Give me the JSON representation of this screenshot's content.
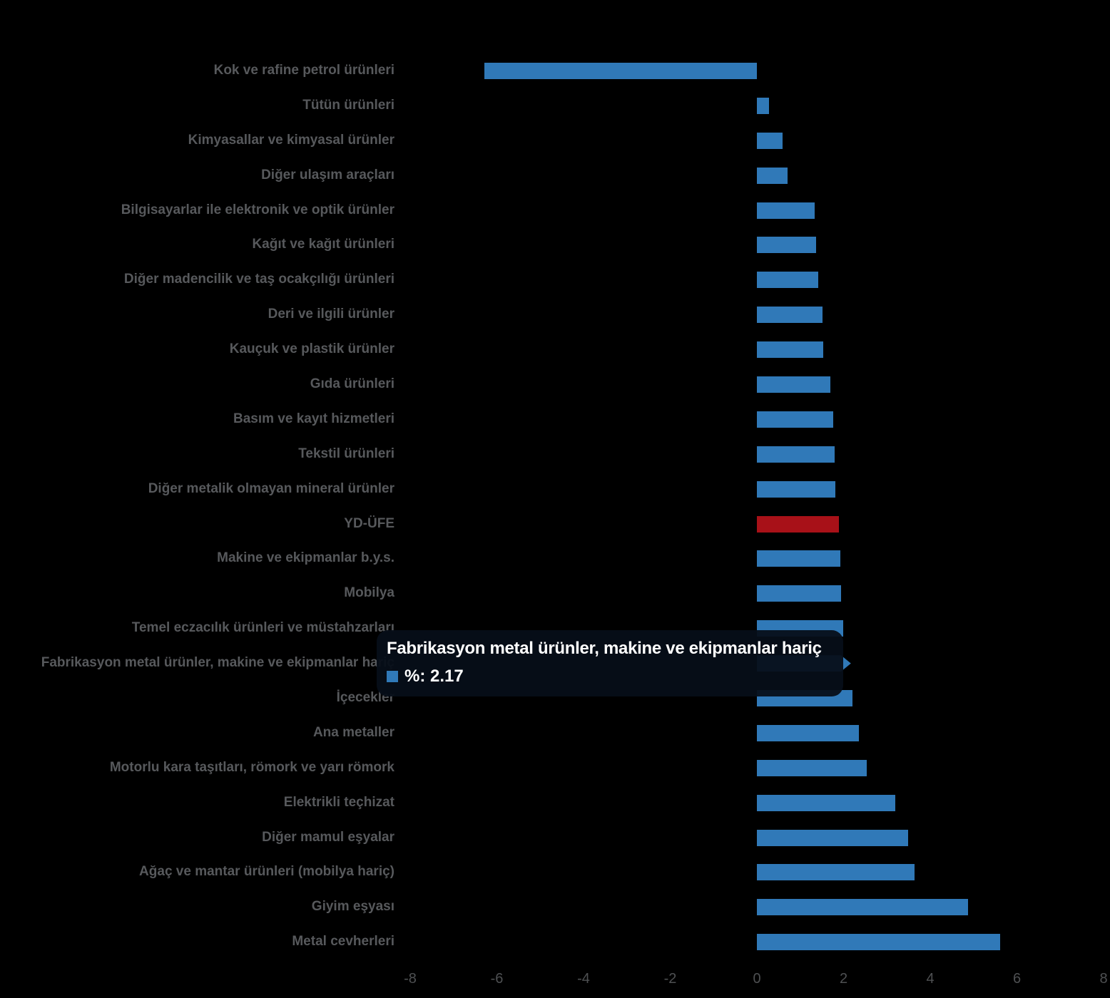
{
  "chart_data": {
    "type": "bar",
    "orientation": "horizontal",
    "title": "",
    "xlabel": "",
    "ylabel": "",
    "xlim": [
      -8,
      8
    ],
    "x_ticks": [
      -8,
      -6,
      -4,
      -2,
      0,
      2,
      4,
      6,
      8
    ],
    "x_tick_labels": [
      "-8",
      "-6",
      "-4",
      "-2",
      "0",
      "2",
      "4",
      "6",
      "8"
    ],
    "grid": false,
    "legend": false,
    "bar_color": "#3079b8",
    "highlight_color": "#a81118",
    "series_name": "%",
    "items": [
      {
        "label": "Kok ve rafine petrol ürünleri",
        "value": -6.29,
        "emphasis": "normal",
        "state": "normal"
      },
      {
        "label": "Tütün ürünleri",
        "value": 0.28,
        "emphasis": "normal",
        "state": "normal"
      },
      {
        "label": "Kimyasallar ve kimyasal ürünler",
        "value": 0.6,
        "emphasis": "normal",
        "state": "normal"
      },
      {
        "label": "Diğer ulaşım araçları",
        "value": 0.7,
        "emphasis": "normal",
        "state": "normal"
      },
      {
        "label": "Bilgisayarlar ile elektronik ve optik ürünler",
        "value": 1.33,
        "emphasis": "normal",
        "state": "normal"
      },
      {
        "label": "Kağıt ve kağıt ürünleri",
        "value": 1.37,
        "emphasis": "normal",
        "state": "normal"
      },
      {
        "label": "Diğer madencilik ve taş ocakçılığı ürünleri",
        "value": 1.42,
        "emphasis": "normal",
        "state": "normal"
      },
      {
        "label": "Deri ve ilgili ürünler",
        "value": 1.52,
        "emphasis": "normal",
        "state": "normal"
      },
      {
        "label": "Kauçuk ve plastik ürünler",
        "value": 1.53,
        "emphasis": "normal",
        "state": "normal"
      },
      {
        "label": "Gıda ürünleri",
        "value": 1.69,
        "emphasis": "normal",
        "state": "normal"
      },
      {
        "label": "Basım ve kayıt hizmetleri",
        "value": 1.76,
        "emphasis": "normal",
        "state": "normal"
      },
      {
        "label": "Tekstil ürünleri",
        "value": 1.8,
        "emphasis": "normal",
        "state": "normal"
      },
      {
        "label": "Diğer metalik olmayan mineral ürünler",
        "value": 1.81,
        "emphasis": "normal",
        "state": "normal"
      },
      {
        "label": "YD-ÜFE",
        "value": 1.89,
        "emphasis": "highlight",
        "state": "normal"
      },
      {
        "label": "Makine ve ekipmanlar b.y.s.",
        "value": 1.92,
        "emphasis": "normal",
        "state": "normal"
      },
      {
        "label": "Mobilya",
        "value": 1.94,
        "emphasis": "normal",
        "state": "normal"
      },
      {
        "label": "Temel eczacılık ürünleri ve müstahzarları",
        "value": 1.99,
        "emphasis": "normal",
        "state": "normal"
      },
      {
        "label": "Fabrikasyon metal ürünler, makine ve ekipmanlar hariç",
        "value": 2.17,
        "emphasis": "normal",
        "state": "hovered"
      },
      {
        "label": "İçecekler",
        "value": 2.21,
        "emphasis": "normal",
        "state": "normal"
      },
      {
        "label": "Ana metaller",
        "value": 2.36,
        "emphasis": "normal",
        "state": "normal"
      },
      {
        "label": "Motorlu kara taşıtları, römork ve yarı römork",
        "value": 2.53,
        "emphasis": "normal",
        "state": "normal"
      },
      {
        "label": "Elektrikli teçhizat",
        "value": 3.2,
        "emphasis": "normal",
        "state": "normal"
      },
      {
        "label": "Diğer mamul eşyalar",
        "value": 3.49,
        "emphasis": "normal",
        "state": "normal"
      },
      {
        "label": "Ağaç ve mantar ürünleri (mobilya hariç)",
        "value": 3.63,
        "emphasis": "normal",
        "state": "normal"
      },
      {
        "label": "Giyim eşyası",
        "value": 4.87,
        "emphasis": "normal",
        "state": "normal"
      },
      {
        "label": "Metal cevherleri",
        "value": 5.61,
        "emphasis": "normal",
        "state": "normal"
      }
    ]
  },
  "tooltip": {
    "title": "Fabrikasyon metal ürünler, makine ve ekipmanlar hariç",
    "value_label": "%: 2.17",
    "swatch_color": "#3079b8"
  },
  "colors": {
    "background": "#000000",
    "bar_blue": "#3079b8",
    "bar_red": "#a81118",
    "label_gray": "#57595c",
    "tick_gray": "#4e5052",
    "tooltip_text": "#ffffff"
  }
}
